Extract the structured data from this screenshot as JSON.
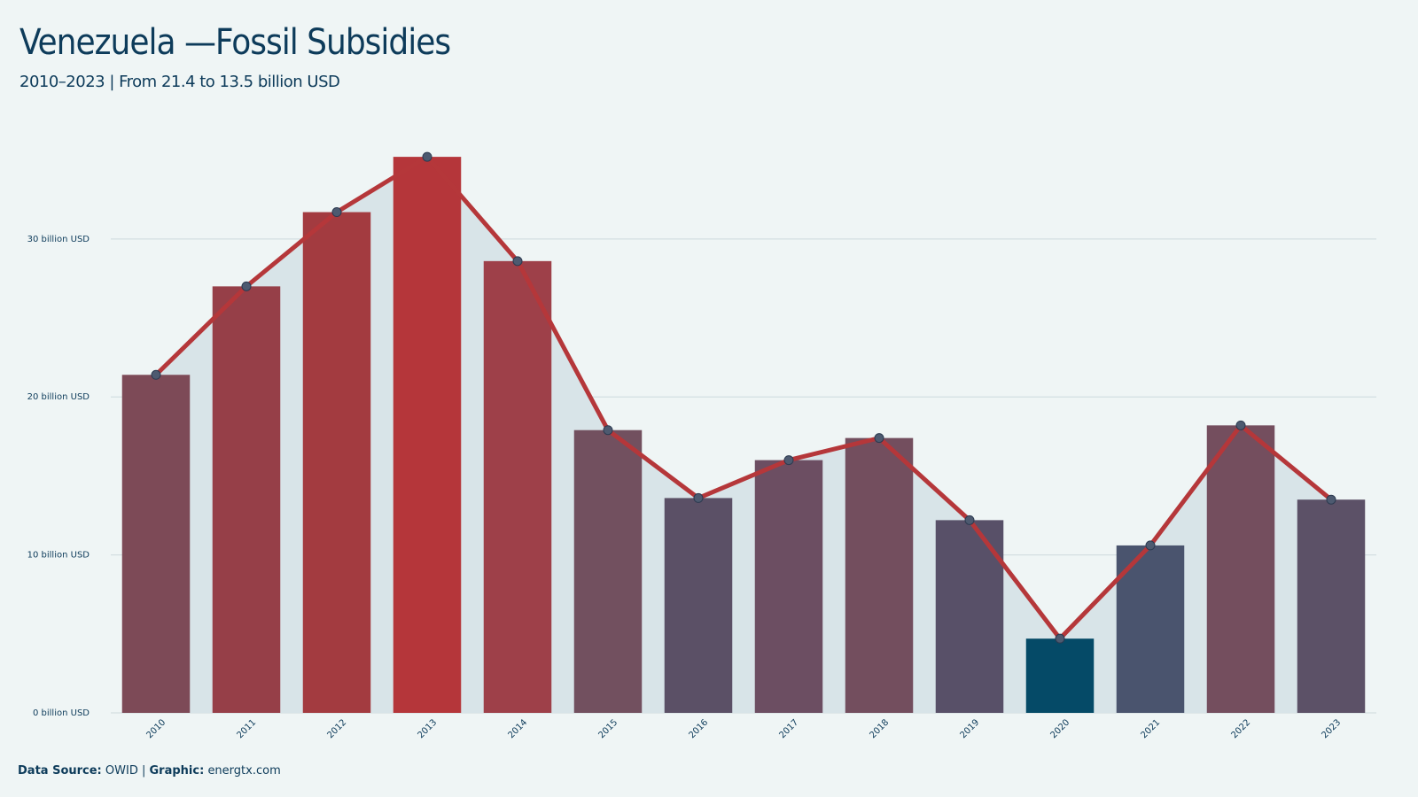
{
  "chart_data": {
    "type": "bar_line",
    "title": "Venezuela —Fossil Subsidies",
    "subtitle": "2010–2023 | From 21.4 to 13.5 billion USD",
    "categories": [
      "2010",
      "2011",
      "2012",
      "2013",
      "2014",
      "2015",
      "2016",
      "2017",
      "2018",
      "2019",
      "2020",
      "2021",
      "2022",
      "2023"
    ],
    "values": [
      21.4,
      27.0,
      31.7,
      35.2,
      28.6,
      17.9,
      13.6,
      16.0,
      17.4,
      12.2,
      4.7,
      10.6,
      18.2,
      13.5
    ],
    "colors": [
      "#7d4a57",
      "#963f48",
      "#a33b40",
      "#b5363a",
      "#9e4049",
      "#72505f",
      "#5b5066",
      "#6c4e62",
      "#734e5e",
      "#585068",
      "#054a67",
      "#4a546e",
      "#744e5e",
      "#5c5167"
    ],
    "line_color": "#b5373a",
    "area_color": "#d8e4e8",
    "ylim": [
      0,
      37
    ],
    "yticks": [
      {
        "value": 0,
        "label": "0 billion USD"
      },
      {
        "value": 10,
        "label": "10 billion USD"
      },
      {
        "value": 20,
        "label": "20 billion USD"
      },
      {
        "value": 30,
        "label": "30 billion USD"
      }
    ],
    "grid": true
  },
  "footer": {
    "source_label": "Data Source:",
    "source": "OWID",
    "separator": "|",
    "graphic_label": "Graphic:",
    "graphic": "energtx.com"
  }
}
